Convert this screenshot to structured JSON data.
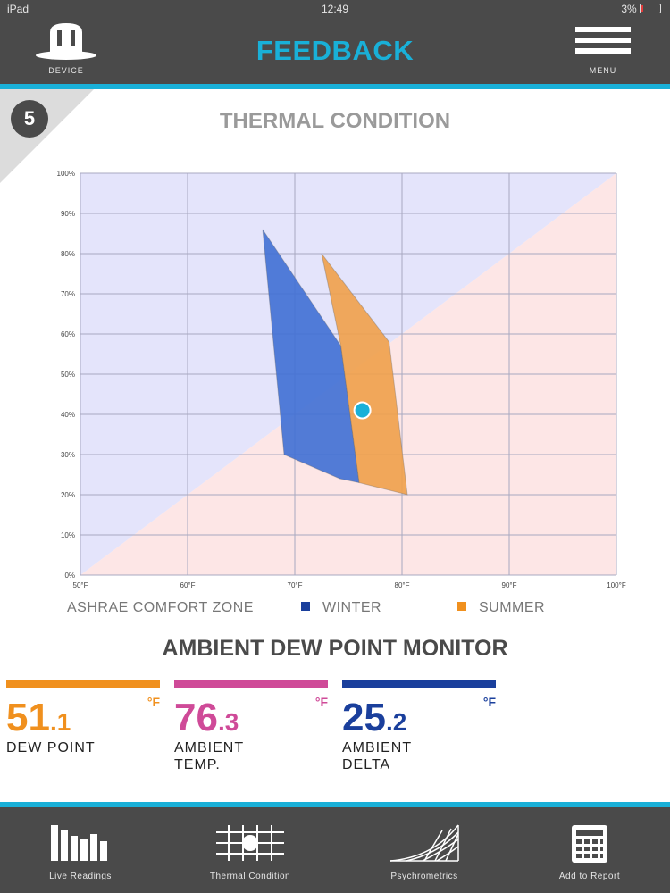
{
  "status_bar": {
    "device": "iPad",
    "time": "12:49",
    "battery": "3%"
  },
  "header": {
    "title": "FEEDBACK",
    "device_label": "DEVICE",
    "menu_label": "MENU"
  },
  "step_number": "5",
  "thermal": {
    "title": "THERMAL CONDITION",
    "legend": {
      "zone_label": "ASHRAE COMFORT ZONE",
      "winter": "WINTER",
      "summer": "SUMMER"
    }
  },
  "colors": {
    "winter": "#3f6fd4",
    "summer": "#f0a04a",
    "marker": "#19b0d8",
    "accent": "#19b0d8"
  },
  "chart_data": {
    "type": "area",
    "x_unit": "°F",
    "x_ticks": [
      "50°F",
      "60°F",
      "70°F",
      "80°F",
      "90°F",
      "100°F"
    ],
    "y_ticks": [
      "0%",
      "10%",
      "20%",
      "30%",
      "40%",
      "50%",
      "60%",
      "70%",
      "80%",
      "90%",
      "100%"
    ],
    "xlim": [
      50,
      100
    ],
    "ylim": [
      0,
      100
    ],
    "grid": true,
    "background_regions": [
      {
        "color": "#e4e4fb",
        "points": [
          [
            50,
            0
          ],
          [
            50,
            100
          ],
          [
            100,
            100
          ]
        ]
      },
      {
        "color": "#fde6e6",
        "points": [
          [
            50,
            0
          ],
          [
            100,
            0
          ],
          [
            100,
            100
          ]
        ]
      }
    ],
    "series": [
      {
        "name": "WINTER",
        "polygon": [
          [
            67.0,
            86
          ],
          [
            74.3,
            57
          ],
          [
            76.0,
            23
          ],
          [
            74.2,
            24
          ],
          [
            69.0,
            30
          ]
        ]
      },
      {
        "name": "SUMMER",
        "polygon": [
          [
            72.5,
            80
          ],
          [
            78.8,
            58
          ],
          [
            80.5,
            20
          ],
          [
            76.0,
            23
          ],
          [
            74.3,
            57
          ]
        ]
      }
    ],
    "current_point": {
      "x": 76.3,
      "y": 41
    }
  },
  "dew": {
    "title": "AMBIENT DEW POINT MONITOR",
    "tiles": [
      {
        "int": "51",
        "dec": ".1",
        "unit": "°F",
        "label": "DEW POINT",
        "label2": "",
        "color": "#f0901e"
      },
      {
        "int": "76",
        "dec": ".3",
        "unit": "°F",
        "label": "AMBIENT",
        "label2": "TEMP.",
        "color": "#cf4a98"
      },
      {
        "int": "25",
        "dec": ".2",
        "unit": "°F",
        "label": "AMBIENT",
        "label2": "DELTA",
        "color": "#1a3f9c"
      }
    ]
  },
  "footer": {
    "items": [
      {
        "label": "Live Readings",
        "icon": "bar-chart-icon"
      },
      {
        "label": "Thermal Condition",
        "icon": "thermal-grid-icon"
      },
      {
        "label": "Psychrometrics",
        "icon": "psychrometric-chart-icon"
      },
      {
        "label": "Add to Report",
        "icon": "report-icon"
      }
    ]
  }
}
